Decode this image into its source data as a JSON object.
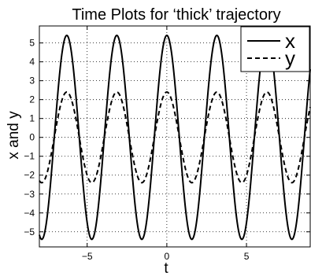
{
  "chart_data": {
    "type": "line",
    "title": "Time Plots for ‘thick’ trajectory",
    "xlabel": "t",
    "ylabel": "x and y",
    "xlim": [
      -8,
      9
    ],
    "ylim": [
      -5.8,
      5.9
    ],
    "xticks": [
      -5,
      0,
      5
    ],
    "yticks": [
      -5,
      -4,
      -3,
      -2,
      -1,
      0,
      1,
      2,
      3,
      4,
      5
    ],
    "grid": true,
    "grid_style": "dotted",
    "legend_position": "top-right",
    "series": [
      {
        "name": "x",
        "style": "solid",
        "color": "#000000",
        "amplitude": 5.4,
        "period": 3.14,
        "peak_t": 0.0
      },
      {
        "name": "y",
        "style": "dashed",
        "color": "#000000",
        "amplitude": 2.4,
        "period": 3.14,
        "peak_t": 0.0
      }
    ]
  }
}
